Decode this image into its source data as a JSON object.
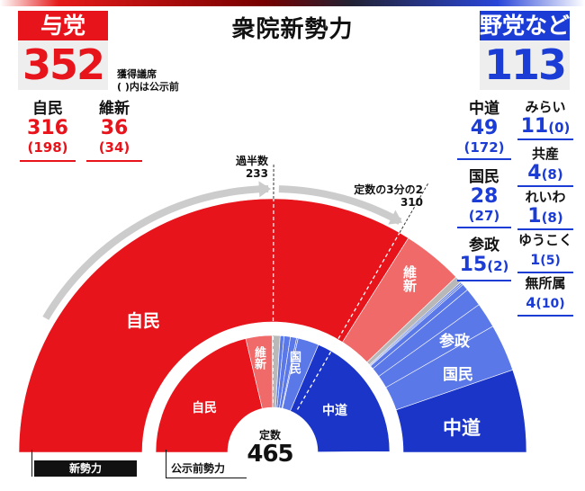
{
  "title": "衆院新勢力",
  "ruling": {
    "label": "与党",
    "total": "352",
    "note1": "獲得議席",
    "note2": "( )内は公示前",
    "parties": [
      {
        "name": "自民",
        "seats": "316",
        "prev": "(198)"
      },
      {
        "name": "維新",
        "seats": "36",
        "prev": "(34)"
      }
    ]
  },
  "opposition": {
    "label": "野党など",
    "total": "113",
    "col1": [
      {
        "name": "中道",
        "seats": "49",
        "prev": "(172)"
      },
      {
        "name": "国民",
        "seats": "28",
        "prev": "(27)"
      },
      {
        "name": "参政",
        "seats": "15",
        "prev": "(2)"
      }
    ],
    "col2": [
      {
        "name": "みらい",
        "seats": "11",
        "prev": "(0)"
      },
      {
        "name": "共産",
        "seats": "4",
        "prev": "(8)"
      },
      {
        "name": "れいわ",
        "seats": "1",
        "prev": "(8)"
      },
      {
        "name": "ゆうこく",
        "seats": "1",
        "prev": "(5)"
      },
      {
        "name": "無所属",
        "seats": "4",
        "prev": "(10)"
      }
    ]
  },
  "markers": {
    "majority_label": "過半数",
    "majority": "233",
    "twothirds_label": "定数の3分の2",
    "twothirds": "310"
  },
  "center": {
    "label": "定数",
    "total": "465"
  },
  "legend": {
    "new": "新勢力",
    "prev": "公示前勢力"
  },
  "chart_labels": {
    "outer_jimin": "自民",
    "outer_ishin": "維新",
    "outer_sansei": "参政",
    "outer_kokumin": "国民",
    "outer_chudo": "中道",
    "inner_jimin": "自民",
    "inner_ishin": "維新",
    "inner_kokumin": "国民",
    "inner_chudo": "中道"
  },
  "chart_data": {
    "type": "pie",
    "shape": "semicircle-donut",
    "total": 465,
    "categories": [
      "自民",
      "維新",
      "無所属",
      "ゆうこく",
      "れいわ",
      "共産",
      "みらい",
      "参政",
      "国民",
      "中道"
    ],
    "colors": [
      "#e8141b",
      "#f06a6a",
      "#b8b8b8",
      "#5b78e8",
      "#5b78e8",
      "#5b78e8",
      "#5b78e8",
      "#5b78e8",
      "#5b78e8",
      "#1a35c8"
    ],
    "series": [
      {
        "name": "新勢力",
        "values": [
          316,
          36,
          4,
          1,
          1,
          4,
          11,
          15,
          28,
          49
        ]
      },
      {
        "name": "公示前勢力",
        "values": [
          198,
          34,
          10,
          5,
          8,
          8,
          0,
          2,
          27,
          172
        ]
      }
    ],
    "reference_lines": [
      233,
      310
    ]
  }
}
